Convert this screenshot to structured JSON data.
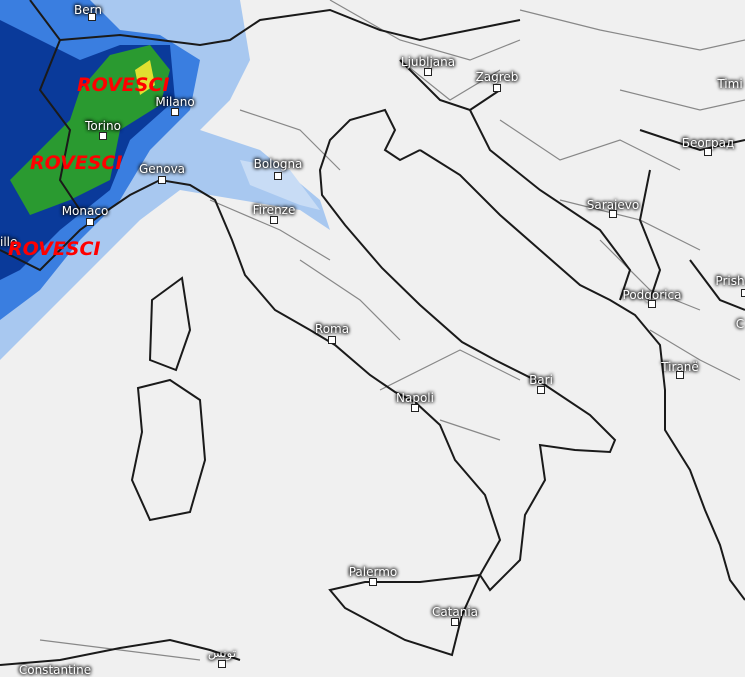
{
  "map": {
    "type": "precipitation-forecast",
    "colors": {
      "background": "#f0f0f0",
      "land_border": "#222222",
      "region_border": "#888888",
      "light_rain": "#a8c8f0",
      "moderate_rain": "#3070d8",
      "heavy_rain": "#0a3a9a",
      "very_heavy": "#2a9a30",
      "extreme": "#e0e030"
    },
    "weather_labels": [
      "ROVESCI",
      "ROVESCI",
      "ROVESCI"
    ],
    "cities": [
      "Bern",
      "Milano",
      "Torino",
      "Genova",
      "Monaco",
      "eille",
      "Bologna",
      "Firenze",
      "Ljubljana",
      "Zagreb",
      "Timi",
      "Београд",
      "Sarajevo",
      "Podgorica",
      "Prish",
      "С",
      "Tiranë",
      "Roma",
      "Napoli",
      "Bari",
      "Palermo",
      "Catania",
      "Constantine",
      "تونس"
    ]
  }
}
